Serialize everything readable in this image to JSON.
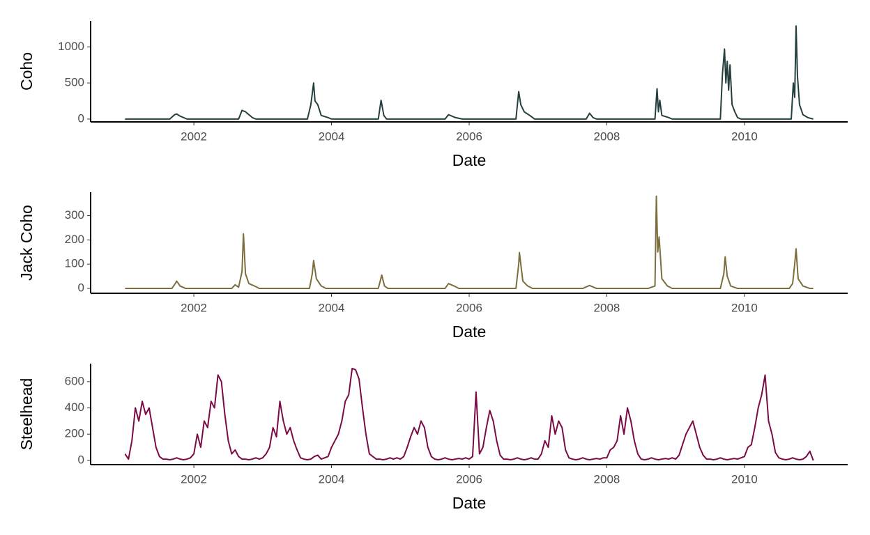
{
  "chart_data": [
    {
      "type": "line",
      "xlabel": "Date",
      "ylabel": "Coho",
      "color": "#253f3f",
      "xlim": [
        2000.5,
        2011.5
      ],
      "xticks": [
        2002,
        2004,
        2006,
        2008,
        2010
      ],
      "ylim": [
        -40,
        1360
      ],
      "yticks": [
        0,
        500,
        1000
      ],
      "x": [
        2001.0,
        2001.65,
        2001.72,
        2001.75,
        2001.8,
        2001.9,
        2002.65,
        2002.7,
        2002.75,
        2002.85,
        2002.9,
        2003.65,
        2003.7,
        2003.74,
        2003.76,
        2003.8,
        2003.85,
        2003.95,
        2004.0,
        2004.68,
        2004.72,
        2004.76,
        2004.8,
        2005.65,
        2005.7,
        2005.8,
        2005.9,
        2006.68,
        2006.72,
        2006.75,
        2006.8,
        2006.88,
        2006.95,
        2007.7,
        2007.75,
        2007.8,
        2007.85,
        2008.7,
        2008.73,
        2008.75,
        2008.77,
        2008.8,
        2008.9,
        2008.95,
        2009.65,
        2009.68,
        2009.71,
        2009.73,
        2009.75,
        2009.77,
        2009.79,
        2009.82,
        2009.86,
        2009.9,
        2009.95,
        2010.68,
        2010.71,
        2010.73,
        2010.75,
        2010.77,
        2010.8,
        2010.85,
        2010.92,
        2011.0
      ],
      "values": [
        0,
        0,
        60,
        70,
        40,
        0,
        0,
        120,
        100,
        20,
        0,
        0,
        200,
        500,
        250,
        200,
        50,
        20,
        0,
        0,
        260,
        50,
        0,
        0,
        60,
        20,
        0,
        0,
        380,
        200,
        100,
        50,
        0,
        0,
        80,
        20,
        0,
        0,
        420,
        100,
        260,
        50,
        20,
        0,
        0,
        620,
        970,
        500,
        800,
        400,
        750,
        200,
        100,
        20,
        0,
        0,
        500,
        300,
        1290,
        600,
        200,
        60,
        20,
        0
      ]
    },
    {
      "type": "line",
      "xlabel": "Date",
      "ylabel": "Jack Coho",
      "color": "#7b6e3c",
      "xlim": [
        2000.5,
        2011.5
      ],
      "xticks": [
        2002,
        2004,
        2006,
        2008,
        2010
      ],
      "ylim": [
        -20,
        396
      ],
      "yticks": [
        0,
        100,
        200,
        300
      ],
      "x": [
        2001.0,
        2001.68,
        2001.73,
        2001.75,
        2001.8,
        2001.88,
        2002.55,
        2002.6,
        2002.65,
        2002.7,
        2002.72,
        2002.75,
        2002.8,
        2002.88,
        2002.95,
        2003.68,
        2003.72,
        2003.74,
        2003.78,
        2003.85,
        2003.92,
        2004.68,
        2004.73,
        2004.77,
        2004.82,
        2005.65,
        2005.7,
        2005.78,
        2005.85,
        2006.68,
        2006.72,
        2006.73,
        2006.78,
        2006.85,
        2006.92,
        2007.65,
        2007.75,
        2007.85,
        2008.6,
        2008.7,
        2008.72,
        2008.74,
        2008.76,
        2008.8,
        2008.88,
        2008.95,
        2009.65,
        2009.7,
        2009.72,
        2009.75,
        2009.8,
        2009.9,
        2010.65,
        2010.7,
        2010.73,
        2010.75,
        2010.78,
        2010.85,
        2010.95,
        2011.0
      ],
      "values": [
        0,
        0,
        20,
        30,
        10,
        0,
        0,
        15,
        5,
        70,
        225,
        60,
        20,
        10,
        0,
        0,
        60,
        115,
        40,
        10,
        0,
        0,
        55,
        10,
        0,
        0,
        20,
        10,
        0,
        0,
        100,
        148,
        30,
        10,
        0,
        0,
        12,
        0,
        0,
        10,
        380,
        150,
        212,
        40,
        10,
        0,
        0,
        60,
        130,
        50,
        10,
        0,
        0,
        20,
        100,
        163,
        40,
        10,
        0,
        0
      ]
    },
    {
      "type": "line",
      "xlabel": "Date",
      "ylabel": "Steelhead",
      "color": "#7a0b45",
      "xlim": [
        2000.5,
        2011.5
      ],
      "xticks": [
        2002,
        2004,
        2006,
        2008,
        2010
      ],
      "ylim": [
        -32,
        737
      ],
      "yticks": [
        0,
        200,
        400,
        600
      ],
      "x": [
        2001.0,
        2001.05,
        2001.1,
        2001.15,
        2001.2,
        2001.25,
        2001.3,
        2001.35,
        2001.4,
        2001.45,
        2001.5,
        2001.55,
        2001.6,
        2001.65,
        2001.7,
        2001.75,
        2001.8,
        2001.85,
        2001.9,
        2001.95,
        2002.0,
        2002.05,
        2002.1,
        2002.15,
        2002.2,
        2002.25,
        2002.3,
        2002.35,
        2002.4,
        2002.45,
        2002.5,
        2002.55,
        2002.6,
        2002.65,
        2002.7,
        2002.75,
        2002.8,
        2002.85,
        2002.9,
        2002.95,
        2003.0,
        2003.05,
        2003.1,
        2003.15,
        2003.2,
        2003.25,
        2003.3,
        2003.35,
        2003.4,
        2003.45,
        2003.5,
        2003.55,
        2003.6,
        2003.65,
        2003.7,
        2003.75,
        2003.8,
        2003.85,
        2003.9,
        2003.95,
        2004.0,
        2004.05,
        2004.1,
        2004.15,
        2004.2,
        2004.25,
        2004.3,
        2004.35,
        2004.4,
        2004.45,
        2004.5,
        2004.55,
        2004.6,
        2004.65,
        2004.7,
        2004.75,
        2004.8,
        2004.85,
        2004.9,
        2004.95,
        2005.0,
        2005.05,
        2005.1,
        2005.15,
        2005.2,
        2005.25,
        2005.3,
        2005.35,
        2005.4,
        2005.45,
        2005.5,
        2005.55,
        2005.6,
        2005.65,
        2005.7,
        2005.75,
        2005.8,
        2005.85,
        2005.9,
        2005.95,
        2006.0,
        2006.05,
        2006.1,
        2006.15,
        2006.2,
        2006.25,
        2006.3,
        2006.35,
        2006.4,
        2006.45,
        2006.5,
        2006.55,
        2006.6,
        2006.65,
        2006.7,
        2006.75,
        2006.8,
        2006.85,
        2006.9,
        2006.95,
        2007.0,
        2007.05,
        2007.1,
        2007.15,
        2007.2,
        2007.25,
        2007.3,
        2007.35,
        2007.4,
        2007.45,
        2007.5,
        2007.55,
        2007.6,
        2007.65,
        2007.7,
        2007.75,
        2007.8,
        2007.85,
        2007.9,
        2007.95,
        2008.0,
        2008.05,
        2008.1,
        2008.15,
        2008.2,
        2008.25,
        2008.3,
        2008.35,
        2008.4,
        2008.45,
        2008.5,
        2008.55,
        2008.6,
        2008.65,
        2008.7,
        2008.75,
        2008.8,
        2008.85,
        2008.9,
        2008.95,
        2009.0,
        2009.05,
        2009.1,
        2009.15,
        2009.2,
        2009.25,
        2009.3,
        2009.35,
        2009.4,
        2009.45,
        2009.5,
        2009.55,
        2009.6,
        2009.65,
        2009.7,
        2009.75,
        2009.8,
        2009.85,
        2009.9,
        2009.95,
        2010.0,
        2010.05,
        2010.1,
        2010.15,
        2010.2,
        2010.25,
        2010.3,
        2010.35,
        2010.4,
        2010.45,
        2010.5,
        2010.55,
        2010.6,
        2010.65,
        2010.7,
        2010.75,
        2010.8,
        2010.85,
        2010.9,
        2010.95,
        2011.0
      ],
      "values": [
        50,
        10,
        150,
        400,
        300,
        450,
        350,
        400,
        250,
        100,
        30,
        10,
        10,
        5,
        10,
        20,
        10,
        5,
        10,
        20,
        50,
        200,
        100,
        300,
        250,
        450,
        400,
        650,
        600,
        350,
        150,
        50,
        80,
        30,
        10,
        10,
        5,
        10,
        20,
        10,
        20,
        50,
        100,
        250,
        180,
        450,
        300,
        200,
        250,
        150,
        80,
        20,
        10,
        5,
        10,
        30,
        40,
        10,
        20,
        30,
        100,
        150,
        200,
        300,
        450,
        500,
        700,
        690,
        620,
        400,
        200,
        50,
        30,
        10,
        10,
        5,
        10,
        20,
        10,
        20,
        10,
        30,
        100,
        180,
        250,
        200,
        300,
        250,
        100,
        30,
        10,
        5,
        10,
        20,
        10,
        5,
        10,
        15,
        10,
        20,
        10,
        30,
        520,
        50,
        100,
        250,
        380,
        300,
        150,
        40,
        10,
        10,
        5,
        10,
        20,
        10,
        5,
        10,
        20,
        10,
        10,
        50,
        150,
        100,
        340,
        200,
        300,
        250,
        80,
        20,
        10,
        5,
        10,
        20,
        10,
        5,
        10,
        15,
        10,
        20,
        20,
        80,
        100,
        150,
        340,
        200,
        400,
        300,
        150,
        50,
        10,
        5,
        10,
        20,
        10,
        5,
        10,
        15,
        10,
        20,
        10,
        40,
        120,
        200,
        250,
        300,
        200,
        100,
        40,
        10,
        10,
        5,
        10,
        20,
        10,
        5,
        10,
        15,
        10,
        20,
        30,
        100,
        120,
        250,
        400,
        500,
        650,
        300,
        200,
        60,
        20,
        10,
        5,
        10,
        20,
        10,
        5,
        10,
        30,
        70,
        0
      ]
    }
  ]
}
